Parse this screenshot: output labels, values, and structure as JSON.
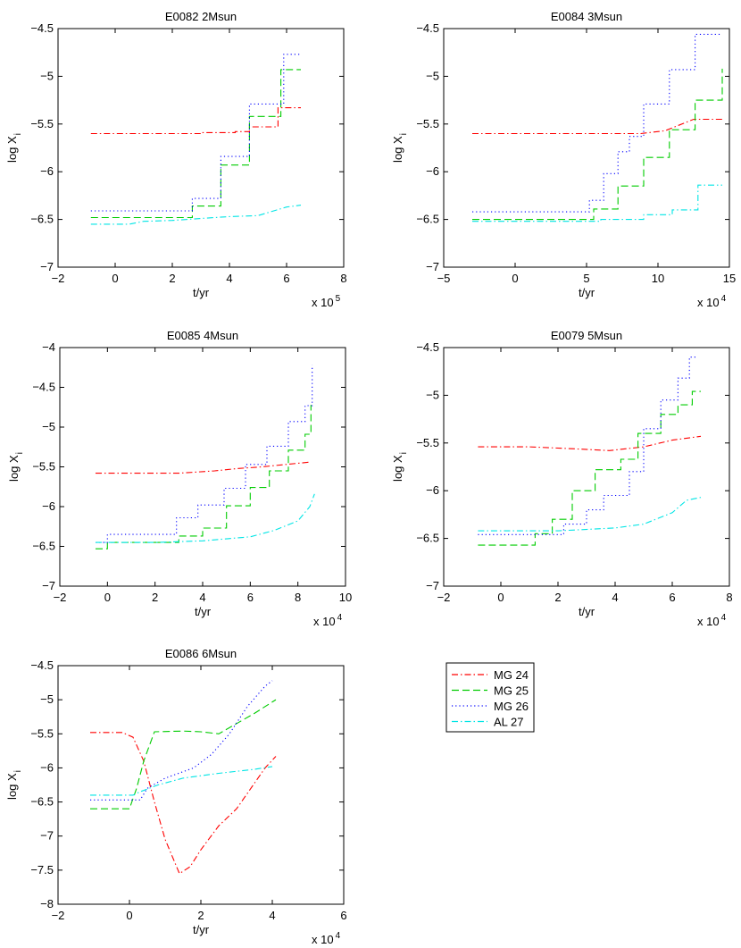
{
  "figure": {
    "series_styles": [
      {
        "name": "MG 24",
        "color": "#ff0000",
        "dash": "7,3,1.5,3"
      },
      {
        "name": "MG 25",
        "color": "#00cc00",
        "dash": "8,4"
      },
      {
        "name": "MG 26",
        "color": "#0000ff",
        "dash": "1.2,3"
      },
      {
        "name": "AL 27",
        "color": "#00e5e5",
        "dash": "7,3,1.5,3"
      }
    ],
    "legend": {
      "placement": "right of bottom-left panel",
      "entries": [
        "MG 24",
        "MG 25",
        "MG 26",
        "AL 27"
      ]
    }
  },
  "chart_data": [
    {
      "type": "line",
      "title": "E0082 2Msun",
      "xlabel": "t/yr",
      "ylabel": "log X",
      "ylabel_sub": "i",
      "multiplier": "x 10",
      "multiplier_exp": "5",
      "xlim": [
        -2,
        8
      ],
      "ylim": [
        -7,
        -4.5
      ],
      "xticks": [
        -2,
        0,
        2,
        4,
        6,
        8
      ],
      "xtick_labels": [
        "−2",
        "0",
        "2",
        "4",
        "6",
        "8"
      ],
      "yticks": [
        -7,
        -6.5,
        -6,
        -5.5,
        -5,
        -4.5
      ],
      "ytick_labels": [
        "−7",
        "−6.5",
        "−6",
        "−5.5",
        "−5",
        "−4.5"
      ],
      "series": [
        {
          "name": "MG 24",
          "x": [
            -0.85,
            1.0,
            3.0,
            4.2,
            4.7,
            5.5,
            5.7,
            6.5
          ],
          "y": [
            -5.6,
            -5.6,
            -5.59,
            -5.58,
            -5.53,
            -5.53,
            -5.33,
            -5.33
          ],
          "step": true
        },
        {
          "name": "MG 25",
          "x": [
            -0.85,
            1.0,
            2.7,
            3.7,
            4.7,
            5.3,
            5.8,
            6.5
          ],
          "y": [
            -6.48,
            -6.48,
            -6.36,
            -5.93,
            -5.42,
            -5.42,
            -4.93,
            -4.93
          ],
          "step": true
        },
        {
          "name": "MG 26",
          "x": [
            -0.85,
            1.5,
            2.7,
            3.7,
            4.7,
            5.9,
            6.5
          ],
          "y": [
            -6.41,
            -6.41,
            -6.28,
            -5.84,
            -5.29,
            -4.77,
            -4.77
          ],
          "step": true
        },
        {
          "name": "AL 27",
          "x": [
            -0.85,
            0.5,
            1.0,
            2.0,
            3.0,
            4.0,
            5.0,
            6.0,
            6.5
          ],
          "y": [
            -6.55,
            -6.55,
            -6.52,
            -6.51,
            -6.49,
            -6.47,
            -6.46,
            -6.37,
            -6.35
          ],
          "step": false
        }
      ]
    },
    {
      "type": "line",
      "title": "E0084 3Msun",
      "xlabel": "t/yr",
      "ylabel": "log X",
      "ylabel_sub": "i",
      "multiplier": "x 10",
      "multiplier_exp": "4",
      "xlim": [
        -5,
        15
      ],
      "ylim": [
        -7,
        -4.5
      ],
      "xticks": [
        -5,
        0,
        5,
        10,
        15
      ],
      "xtick_labels": [
        "−5",
        "0",
        "5",
        "10",
        "15"
      ],
      "yticks": [
        -7,
        -6.5,
        -6,
        -5.5,
        -5,
        -4.5
      ],
      "ytick_labels": [
        "−7",
        "−6.5",
        "−6",
        "−5.5",
        "−5",
        "−4.5"
      ],
      "series": [
        {
          "name": "MG 24",
          "x": [
            -3,
            5,
            8.8,
            10.5,
            12.5,
            14.5
          ],
          "y": [
            -5.6,
            -5.6,
            -5.6,
            -5.57,
            -5.45,
            -5.45
          ],
          "step": false
        },
        {
          "name": "MG 25",
          "x": [
            -3,
            3.8,
            5.5,
            7.2,
            9.0,
            10.8,
            12.6,
            14.5
          ],
          "y": [
            -6.5,
            -6.5,
            -6.39,
            -6.15,
            -5.85,
            -5.56,
            -5.25,
            -4.92
          ],
          "step": true
        },
        {
          "name": "MG 26",
          "x": [
            -3,
            3.8,
            5.2,
            6.2,
            7.2,
            8.0,
            9.0,
            10.8,
            12.6,
            14.5
          ],
          "y": [
            -6.42,
            -6.42,
            -6.3,
            -6.02,
            -5.79,
            -5.63,
            -5.29,
            -4.93,
            -4.56,
            -4.56
          ],
          "step": true
        },
        {
          "name": "AL 27",
          "x": [
            -3,
            3,
            6,
            9,
            11,
            12.8,
            14.5
          ],
          "y": [
            -6.52,
            -6.52,
            -6.5,
            -6.45,
            -6.4,
            -6.14,
            -6.14
          ],
          "step": true
        }
      ]
    },
    {
      "type": "line",
      "title": "E0085 4Msun",
      "xlabel": "t/yr",
      "ylabel": "log X",
      "ylabel_sub": "i",
      "multiplier": "x 10",
      "multiplier_exp": "4",
      "xlim": [
        -2,
        10
      ],
      "ylim": [
        -7,
        -4
      ],
      "xticks": [
        -2,
        0,
        2,
        4,
        6,
        8,
        10
      ],
      "xtick_labels": [
        "−2",
        "0",
        "2",
        "4",
        "6",
        "8",
        "10"
      ],
      "yticks": [
        -7,
        -6.5,
        -6,
        -5.5,
        -5,
        -4.5,
        -4
      ],
      "ytick_labels": [
        "−7",
        "−6.5",
        "−6",
        "−5.5",
        "−5",
        "−4.5",
        "−4"
      ],
      "series": [
        {
          "name": "MG 24",
          "x": [
            -0.5,
            1.5,
            3.0,
            4.5,
            5.5,
            6.5,
            7.5,
            8.5
          ],
          "y": [
            -5.58,
            -5.58,
            -5.58,
            -5.55,
            -5.52,
            -5.5,
            -5.47,
            -5.44
          ],
          "step": false
        },
        {
          "name": "MG 25",
          "x": [
            -0.5,
            0.0,
            2.0,
            3.0,
            4.0,
            5.0,
            6.0,
            6.8,
            7.6,
            8.3,
            8.55
          ],
          "y": [
            -6.53,
            -6.45,
            -6.45,
            -6.37,
            -6.27,
            -5.99,
            -5.76,
            -5.55,
            -5.29,
            -5.09,
            -4.72
          ],
          "step": true
        },
        {
          "name": "MG 26",
          "x": [
            -0.5,
            0.0,
            1.8,
            2.9,
            3.8,
            4.9,
            5.8,
            6.7,
            7.6,
            8.3,
            8.6
          ],
          "y": [
            -6.45,
            -6.35,
            -6.35,
            -6.14,
            -5.98,
            -5.77,
            -5.47,
            -5.24,
            -4.93,
            -4.73,
            -4.22
          ],
          "step": true
        },
        {
          "name": "AL 27",
          "x": [
            -0.5,
            2.0,
            4.0,
            6.0,
            7.0,
            8.0,
            8.5,
            8.7
          ],
          "y": [
            -6.45,
            -6.45,
            -6.43,
            -6.38,
            -6.3,
            -6.18,
            -6.0,
            -5.84
          ],
          "step": false
        }
      ]
    },
    {
      "type": "line",
      "title": "E0079 5Msun",
      "xlabel": "t/yr",
      "ylabel": "log X",
      "ylabel_sub": "i",
      "multiplier": "x 10",
      "multiplier_exp": "4",
      "xlim": [
        -2,
        8
      ],
      "ylim": [
        -7,
        -4.5
      ],
      "xticks": [
        -2,
        0,
        2,
        4,
        6,
        8
      ],
      "xtick_labels": [
        "−2",
        "0",
        "2",
        "4",
        "6",
        "8"
      ],
      "yticks": [
        -7,
        -6.5,
        -6,
        -5.5,
        -5,
        -4.5
      ],
      "ytick_labels": [
        "−7",
        "−6.5",
        "−6",
        "−5.5",
        "−5",
        "−4.5"
      ],
      "series": [
        {
          "name": "MG 24",
          "x": [
            -0.8,
            1.0,
            2.5,
            3.8,
            5.0,
            6.0,
            7.0
          ],
          "y": [
            -5.54,
            -5.54,
            -5.56,
            -5.58,
            -5.54,
            -5.47,
            -5.43
          ],
          "step": false
        },
        {
          "name": "MG 25",
          "x": [
            -0.8,
            1.2,
            1.2,
            1.8,
            2.5,
            3.3,
            4.2,
            4.8,
            5.6,
            6.2,
            6.7,
            7.0
          ],
          "y": [
            -6.57,
            -6.57,
            -6.45,
            -6.3,
            -6.0,
            -5.78,
            -5.67,
            -5.4,
            -5.2,
            -5.1,
            -4.96,
            -4.96
          ],
          "step": true
        },
        {
          "name": "MG 26",
          "x": [
            -0.8,
            1.0,
            2.2,
            3.0,
            3.6,
            4.5,
            5.0,
            5.6,
            6.2,
            6.6,
            6.9
          ],
          "y": [
            -6.46,
            -6.46,
            -6.35,
            -6.2,
            -6.05,
            -5.8,
            -5.35,
            -5.05,
            -4.82,
            -4.6,
            -4.6
          ],
          "step": true
        },
        {
          "name": "AL 27",
          "x": [
            -0.8,
            2.0,
            4.0,
            5.0,
            6.0,
            6.5,
            7.0
          ],
          "y": [
            -6.42,
            -6.42,
            -6.39,
            -6.35,
            -6.23,
            -6.1,
            -6.07
          ],
          "step": false
        }
      ]
    },
    {
      "type": "line",
      "title": "E0086 6Msun",
      "xlabel": "t/yr",
      "ylabel": "log X",
      "ylabel_sub": "i",
      "multiplier": "x 10",
      "multiplier_exp": "4",
      "xlim": [
        -2,
        6
      ],
      "ylim": [
        -8,
        -4.5
      ],
      "xticks": [
        -2,
        0,
        2,
        4,
        6
      ],
      "xtick_labels": [
        "−2",
        "0",
        "2",
        "4",
        "6"
      ],
      "yticks": [
        -8,
        -7.5,
        -7,
        -6.5,
        -6,
        -5.5,
        -5,
        -4.5
      ],
      "ytick_labels": [
        "−8",
        "−7.5",
        "−7",
        "−6.5",
        "−6",
        "−5.5",
        "−5",
        "−4.5"
      ],
      "series": [
        {
          "name": "MG 24",
          "x": [
            -1.1,
            -0.2,
            0.1,
            0.4,
            0.7,
            1.0,
            1.4,
            1.7,
            2.0,
            2.5,
            3.0,
            3.4,
            3.8,
            4.1
          ],
          "y": [
            -5.48,
            -5.48,
            -5.55,
            -5.9,
            -6.5,
            -7.05,
            -7.55,
            -7.45,
            -7.2,
            -6.85,
            -6.6,
            -6.3,
            -6.0,
            -5.83
          ],
          "step": false
        },
        {
          "name": "MG 25",
          "x": [
            -1.1,
            0.0,
            0.2,
            0.4,
            0.7,
            1.5,
            2.0,
            2.5,
            3.0,
            3.5,
            4.1
          ],
          "y": [
            -6.6,
            -6.6,
            -6.3,
            -5.9,
            -5.47,
            -5.46,
            -5.47,
            -5.5,
            -5.35,
            -5.2,
            -5.0
          ],
          "step": false
        },
        {
          "name": "MG 26",
          "x": [
            -1.1,
            0.3,
            0.5,
            1.0,
            1.8,
            2.3,
            2.8,
            3.3,
            3.8,
            4.0
          ],
          "y": [
            -6.47,
            -6.47,
            -6.3,
            -6.15,
            -6.0,
            -5.8,
            -5.5,
            -5.1,
            -4.8,
            -4.72
          ],
          "step": false
        },
        {
          "name": "AL 27",
          "x": [
            -1.1,
            0.1,
            0.3,
            0.8,
            1.5,
            2.5,
            3.5,
            4.0
          ],
          "y": [
            -6.4,
            -6.4,
            -6.35,
            -6.25,
            -6.15,
            -6.08,
            -6.02,
            -5.98
          ],
          "step": false
        }
      ]
    }
  ]
}
